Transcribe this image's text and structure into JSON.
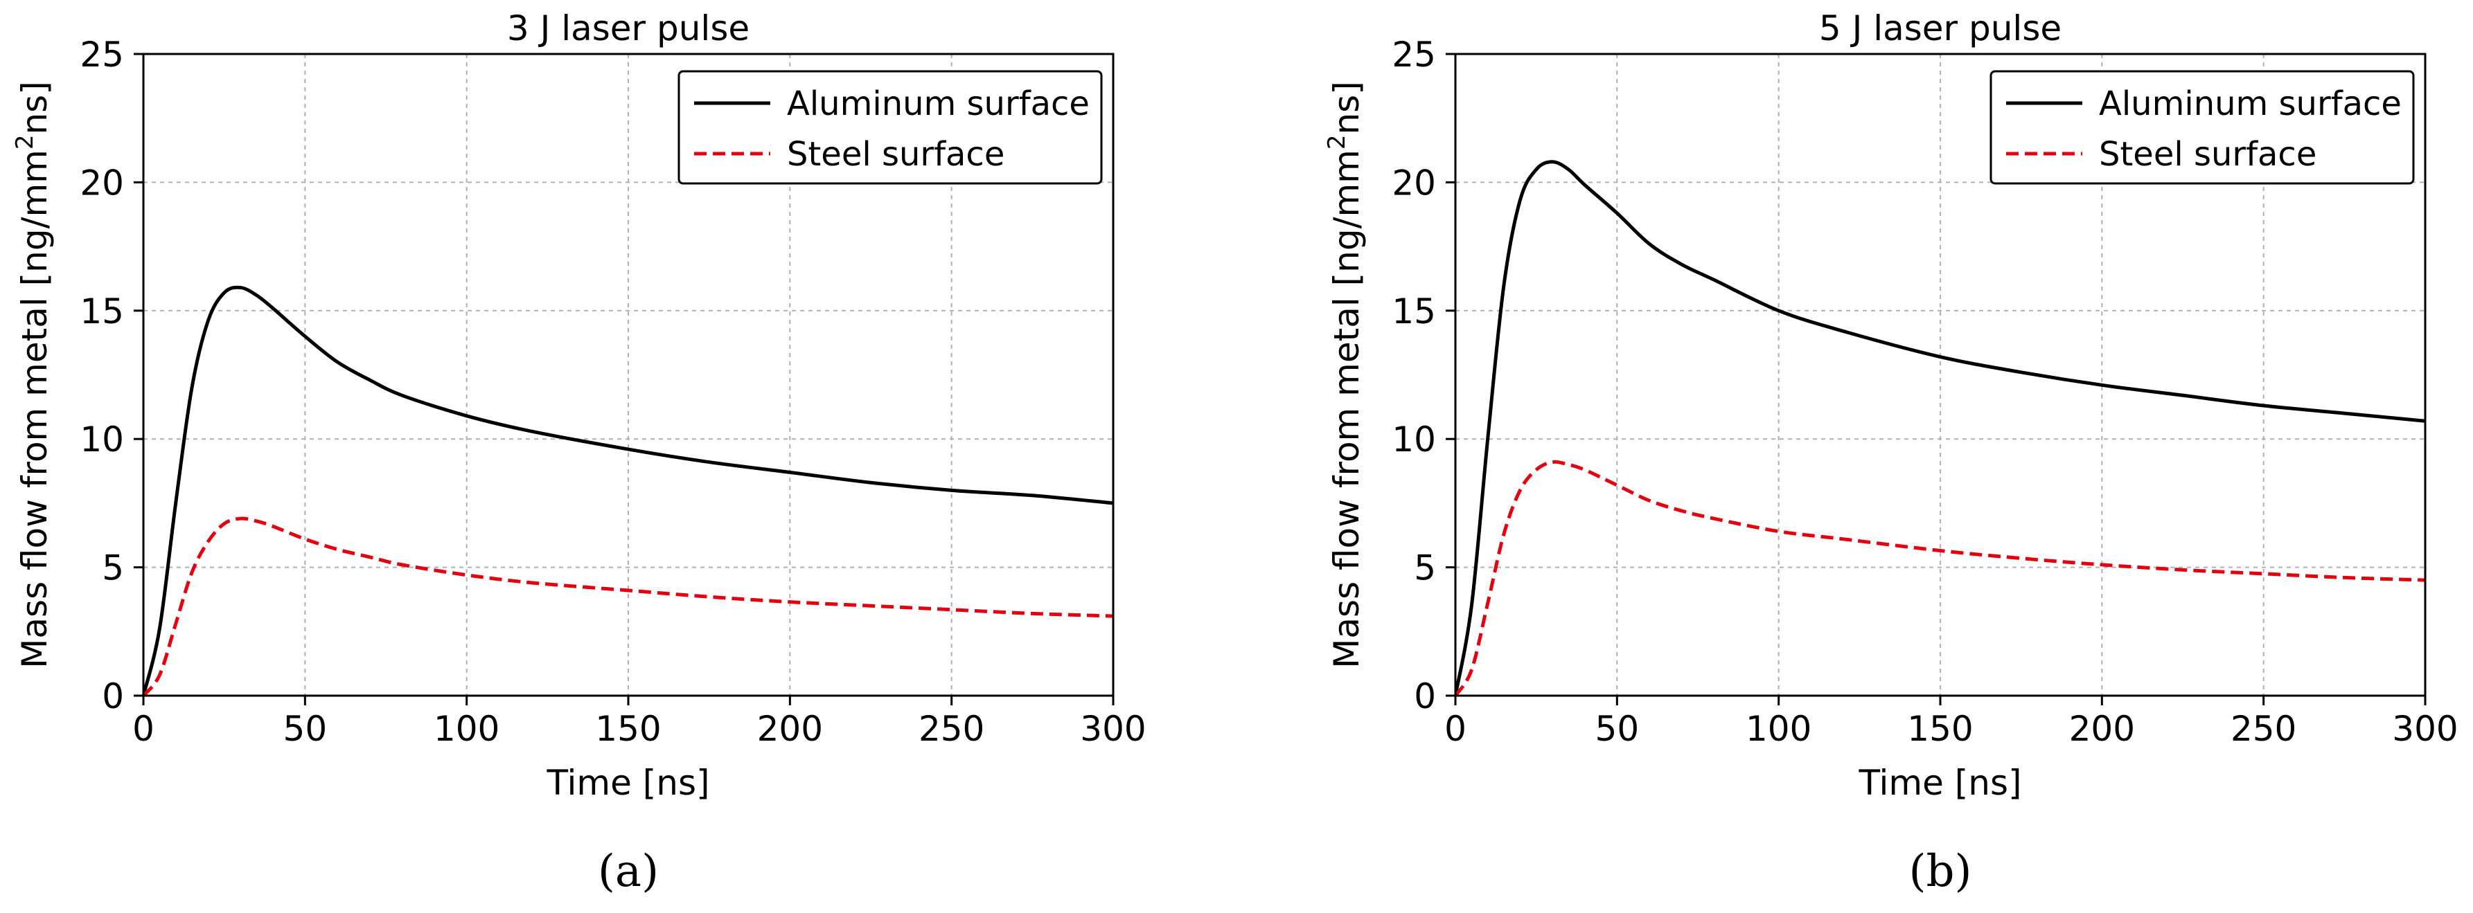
{
  "chart_data": [
    {
      "type": "line",
      "title": "3 J laser pulse",
      "panel_label": "(a)",
      "xlabel": "Time [ns]",
      "ylabel_main": "Mass flow from metal [ng/mm",
      "ylabel_sup": "2",
      "ylabel_end": "ns]",
      "xlim": [
        0,
        300
      ],
      "ylim": [
        0,
        25
      ],
      "xticks": [
        0,
        50,
        100,
        150,
        200,
        250,
        300
      ],
      "yticks": [
        0,
        5,
        10,
        15,
        20,
        25
      ],
      "grid": true,
      "legend_position": "upper-right",
      "x": [
        0,
        5,
        10,
        15,
        20,
        25,
        30,
        35,
        40,
        50,
        60,
        70,
        80,
        100,
        120,
        150,
        175,
        200,
        225,
        250,
        275,
        300
      ],
      "series": [
        {
          "name": "Aluminum surface",
          "color": "#000000",
          "style": "solid",
          "values": [
            0,
            2.6,
            7.5,
            12.0,
            14.6,
            15.7,
            15.9,
            15.6,
            15.1,
            14.0,
            13.0,
            12.3,
            11.7,
            10.9,
            10.3,
            9.6,
            9.1,
            8.7,
            8.3,
            8.0,
            7.8,
            7.5
          ]
        },
        {
          "name": "Steel surface",
          "color": "#e3000f",
          "style": "dashed",
          "values": [
            0,
            0.8,
            2.8,
            4.8,
            6.0,
            6.7,
            6.9,
            6.8,
            6.6,
            6.1,
            5.7,
            5.4,
            5.1,
            4.7,
            4.4,
            4.1,
            3.85,
            3.65,
            3.5,
            3.35,
            3.2,
            3.1
          ]
        }
      ]
    },
    {
      "type": "line",
      "title": "5 J laser pulse",
      "panel_label": "(b)",
      "xlabel": "Time [ns]",
      "ylabel_main": "Mass flow from metal [ng/mm",
      "ylabel_sup": "2",
      "ylabel_end": "ns]",
      "xlim": [
        0,
        300
      ],
      "ylim": [
        0,
        25
      ],
      "xticks": [
        0,
        50,
        100,
        150,
        200,
        250,
        300
      ],
      "yticks": [
        0,
        5,
        10,
        15,
        20,
        25
      ],
      "grid": true,
      "legend_position": "upper-right",
      "x": [
        0,
        5,
        10,
        15,
        20,
        25,
        30,
        35,
        40,
        50,
        60,
        70,
        80,
        100,
        120,
        150,
        175,
        200,
        225,
        250,
        275,
        300
      ],
      "series": [
        {
          "name": "Aluminum surface",
          "color": "#000000",
          "style": "solid",
          "values": [
            0,
            3.5,
            10.0,
            16.0,
            19.3,
            20.5,
            20.8,
            20.5,
            19.9,
            18.8,
            17.6,
            16.8,
            16.2,
            15.0,
            14.2,
            13.2,
            12.6,
            12.1,
            11.7,
            11.3,
            11.0,
            10.7
          ]
        },
        {
          "name": "Steel surface",
          "color": "#e3000f",
          "style": "dashed",
          "values": [
            0,
            1.0,
            3.6,
            6.3,
            8.0,
            8.8,
            9.1,
            9.0,
            8.8,
            8.2,
            7.6,
            7.2,
            6.9,
            6.4,
            6.1,
            5.65,
            5.35,
            5.1,
            4.9,
            4.75,
            4.6,
            4.5
          ]
        }
      ]
    }
  ]
}
